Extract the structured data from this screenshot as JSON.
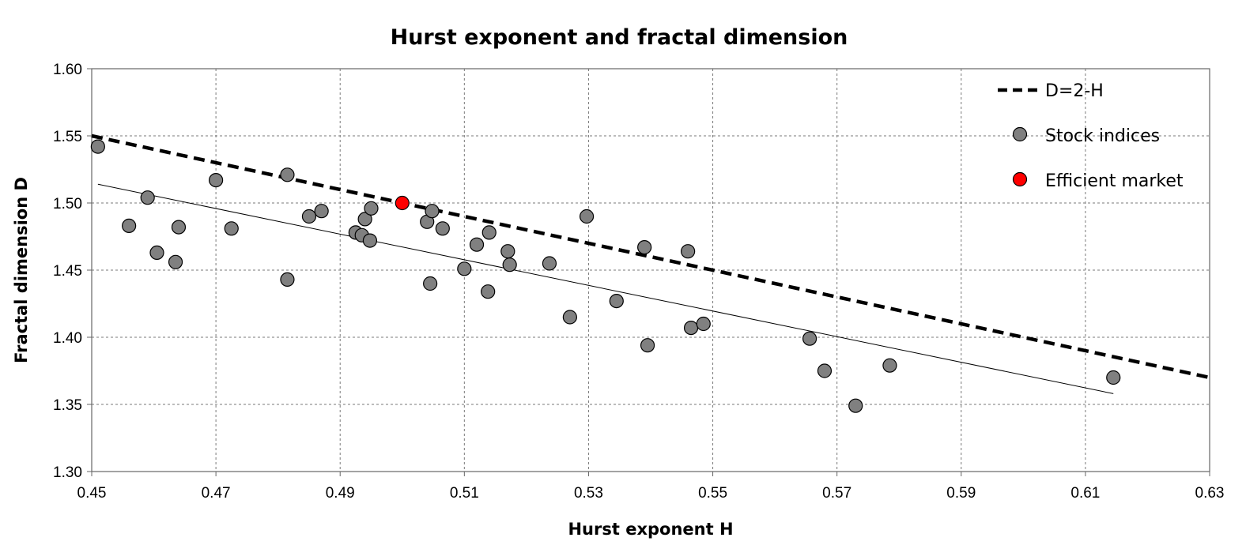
{
  "chart_data": {
    "type": "scatter",
    "title": "Hurst exponent and fractal dimension",
    "xlabel": "Hurst exponent H",
    "ylabel": "Fractal dimension D",
    "xlim": [
      0.45,
      0.63
    ],
    "ylim": [
      1.3,
      1.6
    ],
    "x_ticks": [
      "0.45",
      "0.47",
      "0.49",
      "0.51",
      "0.53",
      "0.55",
      "0.57",
      "0.59",
      "0.61",
      "0.63"
    ],
    "y_ticks": [
      "1.30",
      "1.35",
      "1.40",
      "1.45",
      "1.50",
      "1.55",
      "1.60"
    ],
    "grid": true,
    "legend_position": "top-right",
    "series": [
      {
        "name": "D=2-H",
        "kind": "dashed-line",
        "color": "#000000",
        "points": [
          [
            0.45,
            1.55
          ],
          [
            0.63,
            1.37
          ]
        ]
      },
      {
        "name": "Stock indices",
        "kind": "markers",
        "color": "#808080",
        "points": [
          [
            0.451,
            1.542
          ],
          [
            0.456,
            1.483
          ],
          [
            0.459,
            1.504
          ],
          [
            0.4605,
            1.463
          ],
          [
            0.4635,
            1.456
          ],
          [
            0.464,
            1.482
          ],
          [
            0.47,
            1.517
          ],
          [
            0.4725,
            1.481
          ],
          [
            0.4815,
            1.521
          ],
          [
            0.4815,
            1.443
          ],
          [
            0.485,
            1.49
          ],
          [
            0.487,
            1.494
          ],
          [
            0.4925,
            1.478
          ],
          [
            0.4935,
            1.476
          ],
          [
            0.494,
            1.488
          ],
          [
            0.4948,
            1.472
          ],
          [
            0.495,
            1.496
          ],
          [
            0.504,
            1.486
          ],
          [
            0.5045,
            1.44
          ],
          [
            0.5048,
            1.494
          ],
          [
            0.5065,
            1.481
          ],
          [
            0.51,
            1.451
          ],
          [
            0.512,
            1.469
          ],
          [
            0.5138,
            1.434
          ],
          [
            0.514,
            1.478
          ],
          [
            0.517,
            1.464
          ],
          [
            0.5173,
            1.454
          ],
          [
            0.5237,
            1.455
          ],
          [
            0.527,
            1.415
          ],
          [
            0.5297,
            1.49
          ],
          [
            0.5345,
            1.427
          ],
          [
            0.539,
            1.467
          ],
          [
            0.5395,
            1.394
          ],
          [
            0.546,
            1.464
          ],
          [
            0.5465,
            1.407
          ],
          [
            0.5485,
            1.41
          ],
          [
            0.5656,
            1.399
          ],
          [
            0.568,
            1.375
          ],
          [
            0.573,
            1.349
          ],
          [
            0.5785,
            1.379
          ],
          [
            0.6145,
            1.37
          ]
        ]
      },
      {
        "name": "Efficient market",
        "kind": "markers",
        "color": "#ff0000",
        "points": [
          [
            0.5,
            1.5
          ]
        ]
      },
      {
        "name": "",
        "kind": "trendline",
        "color": "#000000",
        "points": [
          [
            0.451,
            1.514
          ],
          [
            0.6145,
            1.358
          ]
        ]
      }
    ]
  }
}
